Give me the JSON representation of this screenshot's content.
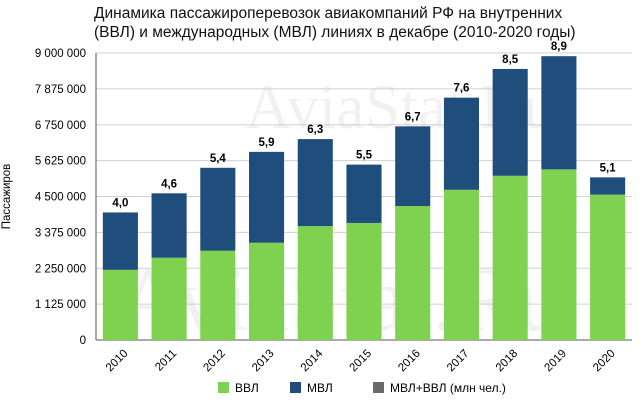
{
  "title": {
    "line1": "Динамика пассажироперевозок авиакомпаний РФ на внутренних",
    "line2": "(ВВЛ) и международных (МВЛ) линиях в декабре (2010-2020 годы)"
  },
  "watermark": "AviaStat.Ru",
  "colors": {
    "vvl": "#7ed24f",
    "mvl": "#1f4e7d",
    "total": "#6a6a6a",
    "grid": "#d0d0d0",
    "axis": "#555555"
  },
  "chart_data": {
    "type": "bar",
    "stacked": true,
    "categories": [
      "2010",
      "2011",
      "2012",
      "2013",
      "2014",
      "2015",
      "2016",
      "2017",
      "2018",
      "2019",
      "2020"
    ],
    "series": [
      {
        "name": "ВВЛ",
        "values": [
          2200000,
          2580000,
          2800000,
          3050000,
          3570000,
          3670000,
          4200000,
          4710000,
          5150000,
          5350000,
          4560000
        ]
      },
      {
        "name": "МВЛ",
        "values": [
          1800000,
          2020000,
          2600000,
          2850000,
          2730000,
          1830000,
          2500000,
          2890000,
          3350000,
          3550000,
          540000
        ]
      },
      {
        "name": "МВЛ+ВВЛ (млн чел.)",
        "values": [
          4.0,
          4.6,
          5.4,
          5.9,
          6.3,
          5.5,
          6.7,
          7.6,
          8.5,
          8.9,
          5.1
        ]
      }
    ],
    "data_labels": [
      "4,0",
      "4,6",
      "5,4",
      "5,9",
      "6,3",
      "5,5",
      "6,7",
      "7,6",
      "8,5",
      "8,9",
      "5,1"
    ],
    "ylabel": "Пассажиров",
    "xlabel": "",
    "ylim": [
      0,
      9000000
    ],
    "yticks": [
      0,
      1125000,
      2250000,
      3375000,
      4500000,
      5625000,
      6750000,
      7875000,
      9000000
    ],
    "ytick_labels": [
      "0",
      "1 125 000",
      "2 250 000",
      "3 375 000",
      "4 500 000",
      "5 625 000",
      "6 750 000",
      "7 875 000",
      "9 000 000"
    ],
    "grid": true,
    "legend_position": "bottom"
  }
}
